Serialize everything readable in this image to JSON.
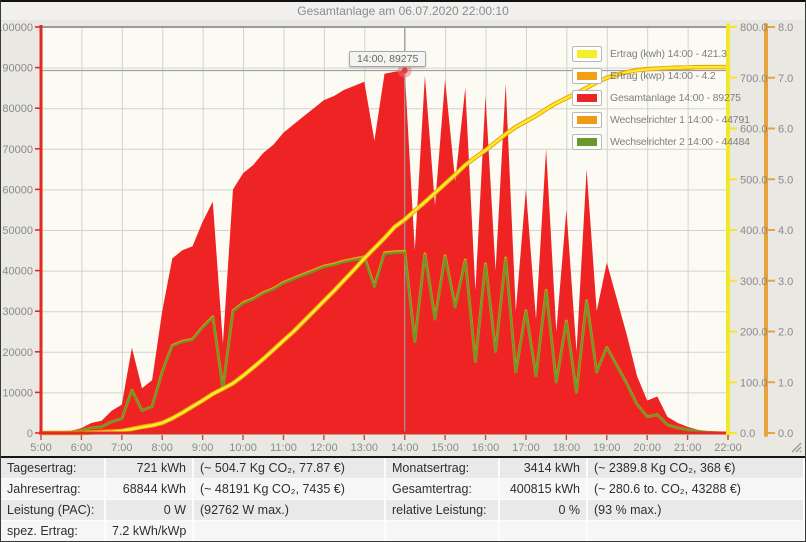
{
  "page": {
    "title": "Gesamtanlage am 06.07.2020 22:00:10"
  },
  "chart_data": {
    "type": "area",
    "title": "Gesamtanlage am 06.07.2020 22:00:10",
    "x_start_hour": 5,
    "x_end_hour": 22,
    "x_step_hours": 0.25,
    "x_tick_labels": [
      "5:00",
      "6:00",
      "7:00",
      "8:00",
      "9:00",
      "10:00",
      "11:00",
      "12:00",
      "13:00",
      "14:00",
      "15:00",
      "16:00",
      "17:00",
      "18:00",
      "19:00",
      "20:00",
      "21:00",
      "22:00"
    ],
    "axes": {
      "left": {
        "min": 0,
        "max": 100000,
        "step": 10000,
        "color": "#e02a24",
        "tick_format": "int"
      },
      "right_kwh": {
        "min": 0,
        "max": 800,
        "step": 100,
        "color": "#f2e72c",
        "tick_format": "1dp"
      },
      "right_kwp": {
        "min": 0,
        "max": 8,
        "step": 1,
        "color": "#e8a33d",
        "tick_format": "1dp"
      }
    },
    "grid": true,
    "legend_position": "top-right",
    "series": [
      {
        "name": "gesamtanlage",
        "legend_label": "Gesamtanlage 14:00 - 89275",
        "render": "area",
        "axis": "left",
        "color": "#ee2323",
        "values": [
          0,
          100,
          300,
          600,
          1200,
          2500,
          3000,
          5500,
          7000,
          21000,
          11000,
          13000,
          30000,
          43000,
          45000,
          46000,
          52000,
          57000,
          22000,
          60000,
          64000,
          66000,
          69000,
          71000,
          74000,
          76000,
          78000,
          80000,
          82000,
          83000,
          84500,
          85500,
          86500,
          72000,
          88500,
          89000,
          89275,
          45000,
          88000,
          56000,
          87000,
          62000,
          85000,
          35000,
          83000,
          40000,
          86000,
          30000,
          60000,
          28000,
          70000,
          25000,
          55000,
          20000,
          65000,
          30000,
          42000,
          33000,
          24000,
          14000,
          8000,
          9000,
          4000,
          2500,
          1500,
          800,
          400,
          150,
          0
        ]
      },
      {
        "name": "wechselrichter-1",
        "legend_label": "Wechselrichter 1 14:00 - 44791",
        "render": "line",
        "axis": "left",
        "color": "#f09c12",
        "width": 2.8,
        "values": [
          0,
          50,
          151,
          301,
          602,
          1254,
          1505,
          2759,
          3512,
          10536,
          5519,
          6522,
          15051,
          21573,
          22577,
          23078,
          26088,
          28597,
          11037,
          30102,
          32109,
          33112,
          34617,
          35621,
          37126,
          38129,
          39133,
          40136,
          41139,
          41641,
          42394,
          42895,
          43397,
          36122,
          44400,
          44651,
          44791,
          22577,
          44150,
          28095,
          43648,
          31105,
          42645,
          17560,
          41641,
          20068,
          43146,
          15051,
          30102,
          14048,
          35119,
          12543,
          27594,
          10034,
          32611,
          15051,
          21071,
          16556,
          12041,
          7024,
          4014,
          4515,
          2007,
          1254,
          753,
          401,
          201,
          75,
          0
        ]
      },
      {
        "name": "wechselrichter-2",
        "legend_label": "Wechselrichter 2 14:00 - 44484",
        "render": "line",
        "axis": "left",
        "color": "#68992a",
        "width": 2.2,
        "values": [
          0,
          50,
          149,
          299,
          598,
          1246,
          1495,
          2741,
          3488,
          10464,
          5481,
          6478,
          14949,
          21427,
          22423,
          22922,
          25912,
          28403,
          10963,
          29898,
          31891,
          32888,
          34383,
          35379,
          36874,
          37871,
          38867,
          39864,
          40861,
          41359,
          42106,
          42605,
          43103,
          35878,
          44100,
          44349,
          44484,
          22423,
          43850,
          27905,
          43352,
          30895,
          42355,
          17440,
          41359,
          19932,
          42854,
          14949,
          29898,
          13952,
          34881,
          12457,
          27406,
          9966,
          32389,
          14949,
          20929,
          16444,
          11959,
          6976,
          3986,
          4485,
          1993,
          1246,
          747,
          399,
          199,
          75,
          0
        ]
      },
      {
        "name": "ertrag-kwp",
        "legend_label": "Ertrag (kwp) 14:00 - 4.2",
        "render": "line",
        "axis": "right_kwp",
        "color": "#f0a012",
        "width": 4.5,
        "values": [
          0,
          0,
          0,
          0,
          0,
          0.01,
          0.02,
          0.03,
          0.04,
          0.08,
          0.12,
          0.15,
          0.2,
          0.29,
          0.4,
          0.52,
          0.64,
          0.77,
          0.87,
          0.98,
          1.13,
          1.29,
          1.46,
          1.64,
          1.82,
          2,
          2.2,
          2.4,
          2.6,
          2.8,
          3.01,
          3.22,
          3.44,
          3.64,
          3.84,
          4.06,
          4.2,
          4.38,
          4.55,
          4.73,
          4.91,
          5.09,
          5.28,
          5.43,
          5.57,
          5.73,
          5.89,
          6.03,
          6.14,
          6.25,
          6.38,
          6.5,
          6.6,
          6.69,
          6.8,
          6.91,
          7,
          7.06,
          7.11,
          7.15,
          7.17,
          7.18,
          7.19,
          7.2,
          7.2,
          7.21,
          7.21,
          7.21,
          7.21
        ]
      },
      {
        "name": "ertrag-kwh",
        "legend_label": "Ertrag (kwh) 14:00 - 421.3",
        "render": "line",
        "axis": "right_kwh",
        "color": "#f6ee27",
        "width": 2.5,
        "values": [
          0,
          0,
          0.1,
          0.2,
          0.4,
          0.9,
          1.6,
          2.6,
          4.2,
          7.7,
          11.7,
          14.7,
          20,
          29,
          40,
          52,
          64,
          77,
          87,
          98,
          113,
          129,
          146,
          164,
          182,
          200,
          220,
          240,
          260,
          280,
          301,
          322,
          344,
          364,
          384,
          406,
          421.3,
          438,
          455,
          473,
          491,
          509,
          528,
          543,
          557,
          573,
          589,
          603,
          614,
          625,
          638,
          650,
          660,
          669,
          680,
          691,
          700,
          706,
          711,
          714.5,
          716.5,
          718,
          719.3,
          720,
          720.5,
          720.8,
          720.9,
          721,
          721
        ]
      }
    ],
    "legend_order": [
      "ertrag-kwh",
      "ertrag-kwp",
      "gesamtanlage",
      "wechselrichter-1",
      "wechselrichter-2"
    ],
    "crosshair": {
      "x_hour": 14,
      "y_value_left": 89275
    },
    "tooltip": {
      "text": "14:00, 89275"
    }
  },
  "footer": {
    "rows": [
      {
        "label_l": "Tagesertrag:",
        "value_l": "721 kWh",
        "detail_l": "(~ 504.7 Kg CO₂, 77.87 €)",
        "label_r": "Monatsertrag:",
        "value_r": "3414 kWh",
        "detail_r": "(~ 2389.8 Kg CO₂, 368 €)"
      },
      {
        "label_l": "Jahresertrag:",
        "value_l": "68844 kWh",
        "detail_l": "(~ 48191 Kg CO₂, 7435 €)",
        "label_r": "Gesamtertrag:",
        "value_r": "400815 kWh",
        "detail_r": "(~ 280.6 to. CO₂, 43288 €)"
      },
      {
        "label_l": "Leistung (PAC):",
        "value_l": "0 W",
        "detail_l": "(92762 W max.)",
        "label_r": "relative Leistung:",
        "value_r": "0 %",
        "detail_r": "(93 % max.)"
      },
      {
        "label_l": "spez. Ertrag:",
        "value_l": "7.2 kWh/kWp",
        "detail_l": "",
        "label_r": "",
        "value_r": "",
        "detail_r": ""
      }
    ]
  }
}
